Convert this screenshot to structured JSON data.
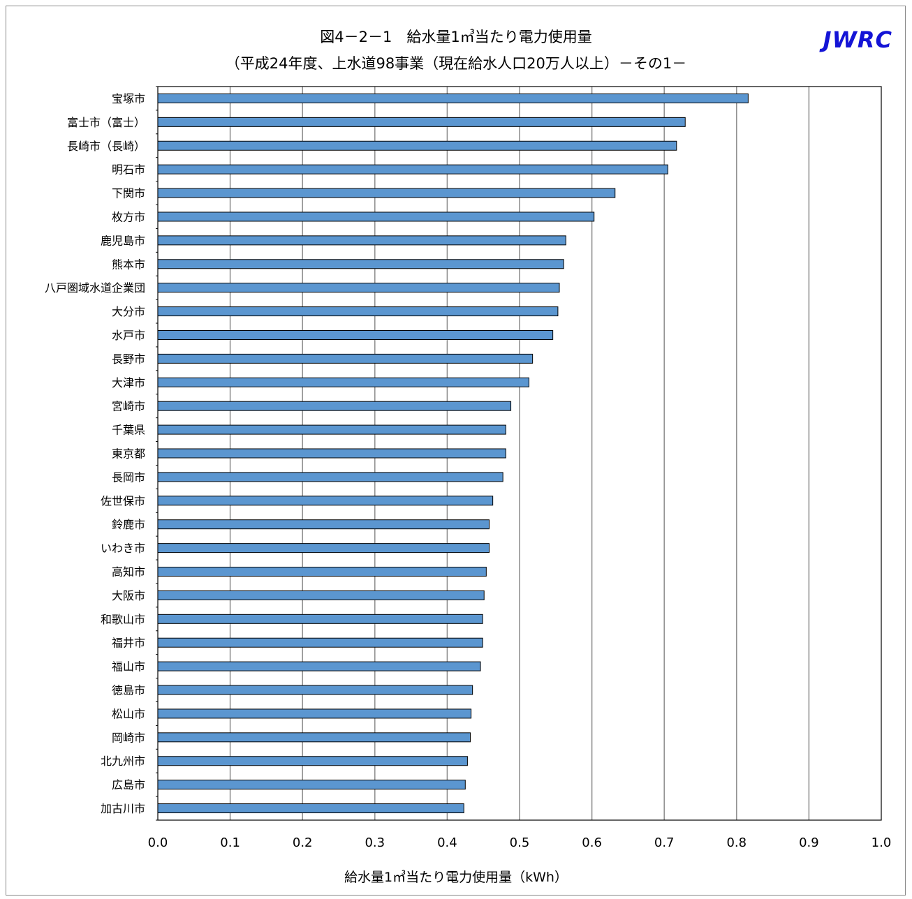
{
  "header": {
    "title_line1": "図4－2－1　給水量1㎥当たり電力使用量",
    "title_line2": "（平成24年度、上水道98事業（現在給水人口20万人以上）－その1－",
    "brand": "JWRC"
  },
  "chart_data": {
    "type": "bar",
    "orientation": "horizontal",
    "title": "図4－2－1　給水量1㎥当たり電力使用量",
    "subtitle": "（平成24年度、上水道98事業（現在給水人口20万人以上）－その1－",
    "xlabel": "給水量1㎥当たり電力使用量（kWh）",
    "ylabel": "",
    "xlim": [
      0,
      1.0
    ],
    "xticks": [
      "0.0",
      "0.1",
      "0.2",
      "0.3",
      "0.4",
      "0.5",
      "0.6",
      "0.7",
      "0.8",
      "0.9",
      "1.0"
    ],
    "grid": true,
    "bar_color": "#5b96d0",
    "categories": [
      "宝塚市",
      "富士市（富士）",
      "長崎市（長崎）",
      "明石市",
      "下関市",
      "枚方市",
      "鹿児島市",
      "熊本市",
      "八戸圏域水道企業団",
      "大分市",
      "水戸市",
      "長野市",
      "大津市",
      "宮崎市",
      "千葉県",
      "東京都",
      "長岡市",
      "佐世保市",
      "鈴鹿市",
      "いわき市",
      "高知市",
      "大阪市",
      "和歌山市",
      "福井市",
      "福山市",
      "徳島市",
      "松山市",
      "岡崎市",
      "北九州市",
      "広島市",
      "加古川市"
    ],
    "values": [
      0.816,
      0.729,
      0.717,
      0.705,
      0.632,
      0.603,
      0.564,
      0.561,
      0.555,
      0.553,
      0.546,
      0.518,
      0.513,
      0.488,
      0.481,
      0.481,
      0.477,
      0.463,
      0.458,
      0.458,
      0.454,
      0.451,
      0.449,
      0.449,
      0.446,
      0.435,
      0.433,
      0.432,
      0.428,
      0.425,
      0.423
    ]
  }
}
